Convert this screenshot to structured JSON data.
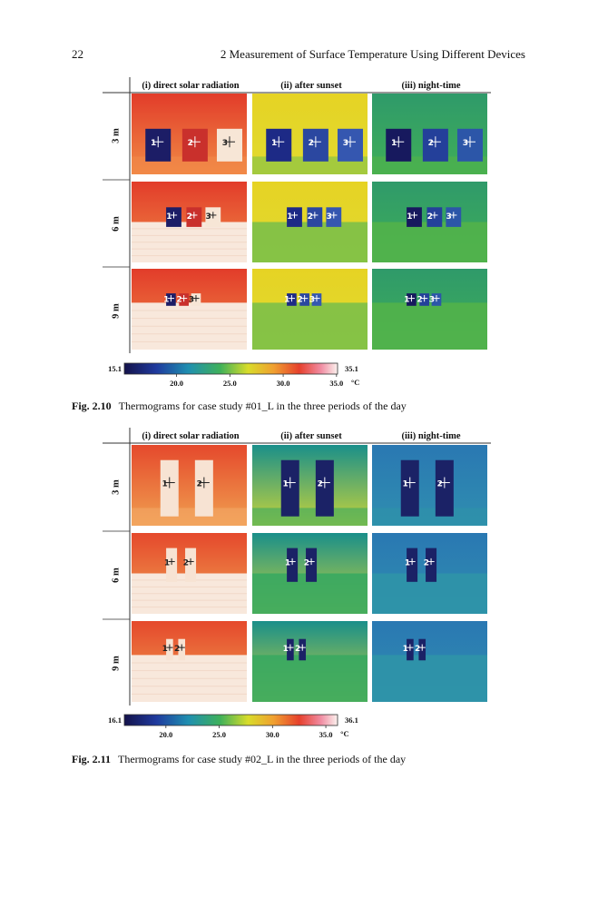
{
  "header": {
    "page_number": "22",
    "running_title": "2   Measurement of Surface Temperature Using Different Devices"
  },
  "figures": [
    {
      "columns": [
        "(i) direct solar radiation",
        "(ii) after sunset",
        "(iii) night-time"
      ],
      "rows": [
        "3 m",
        "6 m",
        "9 m"
      ],
      "markers": [
        "1",
        "2",
        "3"
      ],
      "colorbar": {
        "min": "15.1",
        "max": "35.1",
        "ticks": [
          "20.0",
          "25.0",
          "30.0",
          "35.0"
        ],
        "unit": "°C"
      },
      "caption": {
        "label": "Fig. 2.10",
        "text": "Thermograms for case study #01_L in the three periods of the day"
      }
    },
    {
      "columns": [
        "(i) direct solar radiation",
        "(ii) after sunset",
        "(iii) night-time"
      ],
      "rows": [
        "3 m",
        "6 m",
        "9 m"
      ],
      "markers": [
        "1",
        "2"
      ],
      "colorbar": {
        "min": "16.1",
        "max": "36.1",
        "ticks": [
          "20.0",
          "25.0",
          "30.0",
          "35.0"
        ],
        "unit": "°C"
      },
      "caption": {
        "label": "Fig. 2.11",
        "text": "Thermograms for case study #02_L in the three periods of the day"
      }
    }
  ]
}
